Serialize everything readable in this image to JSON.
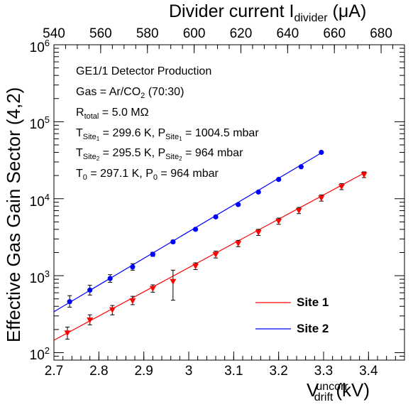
{
  "chart_data": {
    "type": "scatter",
    "y_scale": "log",
    "ylabel": "Effective Gas Gain Sector (4,2)",
    "xlabel": {
      "main": "V",
      "sup": "uncorr",
      "sub": "drift",
      "unit": "(kV)"
    },
    "x2label": {
      "main": "Divider current I",
      "sub": "divider",
      "unit": "(μA)"
    },
    "xlim": [
      2.7,
      3.48
    ],
    "ylim": [
      80,
      1000000
    ],
    "x2lim": [
      540,
      690
    ],
    "x_ticks": [
      "2.7",
      "2.8",
      "2.9",
      "3",
      "3.1",
      "3.2",
      "3.3",
      "3.4"
    ],
    "x2_ticks": [
      "540",
      "560",
      "580",
      "600",
      "620",
      "640",
      "660",
      "680"
    ],
    "y_ticks": [
      {
        "base": "10",
        "exp": "2"
      },
      {
        "base": "10",
        "exp": "3"
      },
      {
        "base": "10",
        "exp": "4"
      },
      {
        "base": "10",
        "exp": "5"
      },
      {
        "base": "10",
        "exp": "6"
      }
    ],
    "annotations": {
      "line1": "GE1/1 Detector Production",
      "line2": {
        "text": "Gas = Ar/CO",
        "sub": "2",
        "rest": " (70:30)"
      },
      "line3": {
        "text": "R",
        "sub": "total",
        "rest": " = 5.0 MΩ"
      },
      "line4": {
        "t": "T",
        "site": "Site",
        "site_sub": "1",
        "t_val": " = 299.6 K, P",
        "p_val": " = 1004.5 mbar"
      },
      "line5": {
        "t": "T",
        "site": "Site",
        "site_sub": "2",
        "t_val": " = 295.5 K, P",
        "p_val": " = 964 mbar"
      },
      "line6": {
        "t0": "T",
        "t0_sub": "0",
        "t0_val": " = 297.1 K, P",
        "p0_sub": "0",
        "p0_val": " = 964 mbar"
      }
    },
    "legend": {
      "placement": "bottom-right"
    },
    "series": [
      {
        "name": "Site 1",
        "color": "#ff0000",
        "marker": "triangle-down",
        "fit": {
          "x": [
            2.7,
            3.39
          ],
          "y": [
            145,
            21500
          ]
        },
        "points": [
          {
            "x": 2.73,
            "y": 180,
            "lo": 150,
            "hi": 215
          },
          {
            "x": 2.78,
            "y": 265,
            "lo": 230,
            "hi": 310
          },
          {
            "x": 2.83,
            "y": 360,
            "lo": 310,
            "hi": 410
          },
          {
            "x": 2.875,
            "y": 470,
            "lo": 420,
            "hi": 540
          },
          {
            "x": 2.92,
            "y": 680,
            "lo": 610,
            "hi": 760
          },
          {
            "x": 2.965,
            "y": 840,
            "lo": 480,
            "hi": 1180
          },
          {
            "x": 3.015,
            "y": 1330,
            "lo": 1200,
            "hi": 1470
          },
          {
            "x": 3.06,
            "y": 1880,
            "lo": 1700,
            "hi": 2080
          },
          {
            "x": 3.11,
            "y": 2620,
            "lo": 2380,
            "hi": 2880
          },
          {
            "x": 3.155,
            "y": 3650,
            "lo": 3330,
            "hi": 4000
          },
          {
            "x": 3.2,
            "y": 5100,
            "lo": 4650,
            "hi": 5600
          },
          {
            "x": 3.245,
            "y": 7000,
            "lo": 6400,
            "hi": 7700
          },
          {
            "x": 3.295,
            "y": 10200,
            "lo": 9300,
            "hi": 11200
          },
          {
            "x": 3.34,
            "y": 14300,
            "lo": 13100,
            "hi": 15700
          },
          {
            "x": 3.39,
            "y": 20500,
            "lo": 18800,
            "hi": 22300
          }
        ]
      },
      {
        "name": "Site 2",
        "color": "#0000ff",
        "marker": "circle",
        "fit": {
          "x": [
            2.7,
            3.3
          ],
          "y": [
            340,
            41000
          ]
        },
        "points": [
          {
            "x": 2.735,
            "y": 460,
            "lo": 390,
            "hi": 550
          },
          {
            "x": 2.78,
            "y": 650,
            "lo": 560,
            "hi": 750
          },
          {
            "x": 2.825,
            "y": 920,
            "lo": 820,
            "hi": 1030
          },
          {
            "x": 2.875,
            "y": 1300,
            "lo": 1180,
            "hi": 1430
          },
          {
            "x": 2.92,
            "y": 1900,
            "lo": 1780,
            "hi": 2020
          },
          {
            "x": 2.965,
            "y": 2750,
            "lo": 2620,
            "hi": 2880
          },
          {
            "x": 3.015,
            "y": 4000,
            "lo": 3850,
            "hi": 4150
          },
          {
            "x": 3.06,
            "y": 5800,
            "lo": 5600,
            "hi": 6000
          },
          {
            "x": 3.11,
            "y": 8400,
            "lo": 8150,
            "hi": 8650
          },
          {
            "x": 3.155,
            "y": 12200,
            "lo": 11900,
            "hi": 12500
          },
          {
            "x": 3.2,
            "y": 17800,
            "lo": 17400,
            "hi": 18200
          },
          {
            "x": 3.25,
            "y": 26000,
            "lo": 25400,
            "hi": 26600
          },
          {
            "x": 3.295,
            "y": 40000,
            "lo": 39200,
            "hi": 40800
          }
        ]
      }
    ]
  }
}
